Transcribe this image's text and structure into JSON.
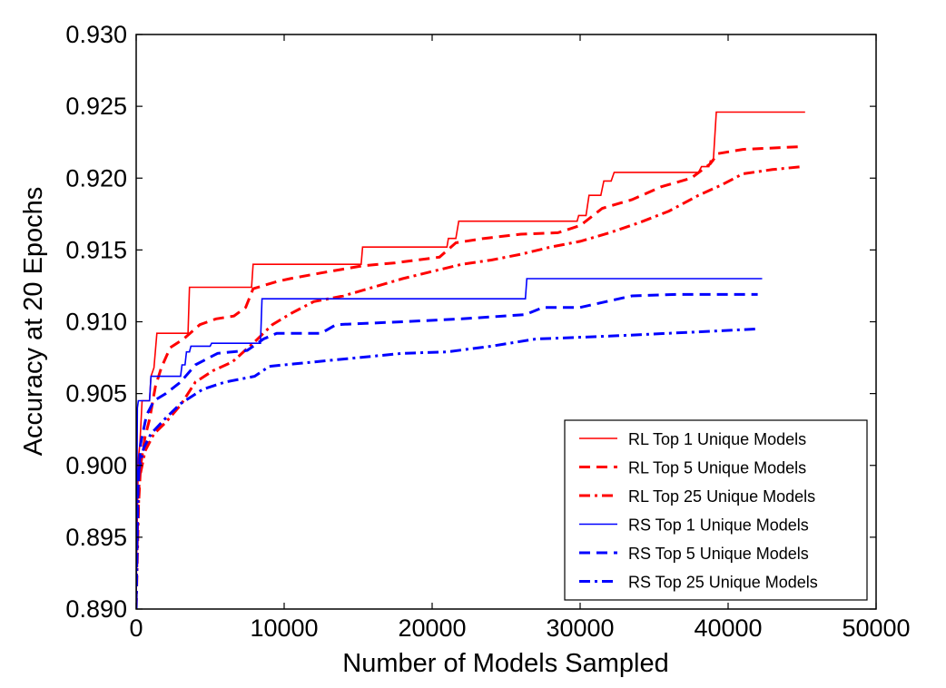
{
  "chart_data": {
    "type": "line",
    "xlabel": "Number of Models Sampled",
    "ylabel": "Accuracy at 20 Epochs",
    "xlim": [
      0,
      50000
    ],
    "ylim": [
      0.89,
      0.93
    ],
    "xticks": [
      0,
      10000,
      20000,
      30000,
      40000,
      50000
    ],
    "xtick_labels": [
      "0",
      "10000",
      "20000",
      "30000",
      "40000",
      "50000"
    ],
    "yticks": [
      0.89,
      0.895,
      0.9,
      0.905,
      0.91,
      0.915,
      0.92,
      0.925,
      0.93
    ],
    "ytick_labels": [
      "0.890",
      "0.895",
      "0.900",
      "0.905",
      "0.910",
      "0.915",
      "0.920",
      "0.925",
      "0.930"
    ],
    "grid": false,
    "legend_position": "lower-right",
    "series": [
      {
        "name": "RL Top 1 Unique Models",
        "color": "#ff0000",
        "style": "solid",
        "width": 1.6,
        "step": true,
        "points": [
          [
            0,
            0.8908
          ],
          [
            60,
            0.8955
          ],
          [
            150,
            0.9005
          ],
          [
            250,
            0.9015
          ],
          [
            400,
            0.9045
          ],
          [
            900,
            0.9045
          ],
          [
            1000,
            0.9062
          ],
          [
            1200,
            0.9068
          ],
          [
            1400,
            0.9092
          ],
          [
            3500,
            0.9092
          ],
          [
            3600,
            0.9124
          ],
          [
            7800,
            0.9124
          ],
          [
            7900,
            0.914
          ],
          [
            15200,
            0.914
          ],
          [
            15300,
            0.9152
          ],
          [
            21000,
            0.9152
          ],
          [
            21100,
            0.9158
          ],
          [
            21600,
            0.9158
          ],
          [
            21800,
            0.917
          ],
          [
            29800,
            0.917
          ],
          [
            29900,
            0.9174
          ],
          [
            30400,
            0.9174
          ],
          [
            30600,
            0.9188
          ],
          [
            31400,
            0.9188
          ],
          [
            31600,
            0.9198
          ],
          [
            32100,
            0.9198
          ],
          [
            32300,
            0.9204
          ],
          [
            38000,
            0.9204
          ],
          [
            38200,
            0.9208
          ],
          [
            38700,
            0.9208
          ],
          [
            38800,
            0.9212
          ],
          [
            39000,
            0.9212
          ],
          [
            39200,
            0.9246
          ],
          [
            45200,
            0.9246
          ]
        ]
      },
      {
        "name": "RL Top 5 Unique Models",
        "color": "#ff0000",
        "style": "dashed",
        "width": 3,
        "step": false,
        "points": [
          [
            0,
            0.8905
          ],
          [
            100,
            0.896
          ],
          [
            300,
            0.9
          ],
          [
            600,
            0.902
          ],
          [
            900,
            0.9032
          ],
          [
            1300,
            0.9055
          ],
          [
            1700,
            0.9068
          ],
          [
            2300,
            0.9082
          ],
          [
            3200,
            0.9088
          ],
          [
            4300,
            0.9098
          ],
          [
            5400,
            0.9102
          ],
          [
            6600,
            0.9104
          ],
          [
            7400,
            0.911
          ],
          [
            7900,
            0.9123
          ],
          [
            9500,
            0.9128
          ],
          [
            10400,
            0.913
          ],
          [
            12500,
            0.9134
          ],
          [
            15300,
            0.9139
          ],
          [
            17500,
            0.9141
          ],
          [
            20500,
            0.9145
          ],
          [
            21600,
            0.9155
          ],
          [
            23500,
            0.9158
          ],
          [
            26000,
            0.9161
          ],
          [
            28500,
            0.9162
          ],
          [
            30000,
            0.9167
          ],
          [
            31500,
            0.9179
          ],
          [
            33500,
            0.9185
          ],
          [
            35500,
            0.9194
          ],
          [
            37500,
            0.92
          ],
          [
            38800,
            0.921
          ],
          [
            39300,
            0.9217
          ],
          [
            41000,
            0.922
          ],
          [
            45100,
            0.9222
          ]
        ]
      },
      {
        "name": "RL Top 25 Unique Models",
        "color": "#ff0000",
        "style": "dashdot",
        "width": 3,
        "step": false,
        "points": [
          [
            0,
            0.89
          ],
          [
            200,
            0.899
          ],
          [
            600,
            0.901
          ],
          [
            1200,
            0.9022
          ],
          [
            2000,
            0.903
          ],
          [
            3000,
            0.9042
          ],
          [
            4000,
            0.9058
          ],
          [
            5200,
            0.9066
          ],
          [
            6500,
            0.9072
          ],
          [
            8000,
            0.9086
          ],
          [
            9200,
            0.9098
          ],
          [
            10500,
            0.9106
          ],
          [
            12000,
            0.9114
          ],
          [
            14000,
            0.9118
          ],
          [
            16000,
            0.9124
          ],
          [
            18000,
            0.913
          ],
          [
            20000,
            0.9135
          ],
          [
            22000,
            0.914
          ],
          [
            24000,
            0.9143
          ],
          [
            26000,
            0.9147
          ],
          [
            28000,
            0.9152
          ],
          [
            30000,
            0.9156
          ],
          [
            32000,
            0.9162
          ],
          [
            34000,
            0.9169
          ],
          [
            36000,
            0.9177
          ],
          [
            38000,
            0.9188
          ],
          [
            39500,
            0.9195
          ],
          [
            41000,
            0.9203
          ],
          [
            43000,
            0.9206
          ],
          [
            45000,
            0.9208
          ]
        ]
      },
      {
        "name": "RS Top 1 Unique Models",
        "color": "#0000ff",
        "style": "solid",
        "width": 1.6,
        "step": true,
        "points": [
          [
            0,
            0.8908
          ],
          [
            40,
            0.8975
          ],
          [
            80,
            0.904
          ],
          [
            150,
            0.9045
          ],
          [
            900,
            0.9045
          ],
          [
            1000,
            0.9062
          ],
          [
            3000,
            0.9062
          ],
          [
            3100,
            0.907
          ],
          [
            3300,
            0.907
          ],
          [
            3400,
            0.9079
          ],
          [
            3600,
            0.9079
          ],
          [
            3700,
            0.9083
          ],
          [
            5000,
            0.9083
          ],
          [
            5100,
            0.9085
          ],
          [
            8400,
            0.9085
          ],
          [
            8500,
            0.9116
          ],
          [
            26300,
            0.9116
          ],
          [
            26400,
            0.913
          ],
          [
            42300,
            0.913
          ]
        ]
      },
      {
        "name": "RS Top 5 Unique Models",
        "color": "#0000ff",
        "style": "dashed",
        "width": 3,
        "step": false,
        "points": [
          [
            0,
            0.8905
          ],
          [
            100,
            0.898
          ],
          [
            300,
            0.9015
          ],
          [
            700,
            0.9035
          ],
          [
            1200,
            0.9045
          ],
          [
            2000,
            0.905
          ],
          [
            3000,
            0.9058
          ],
          [
            4000,
            0.907
          ],
          [
            5500,
            0.9078
          ],
          [
            7500,
            0.908
          ],
          [
            8600,
            0.9088
          ],
          [
            9500,
            0.9092
          ],
          [
            12500,
            0.9092
          ],
          [
            13500,
            0.9098
          ],
          [
            18000,
            0.91
          ],
          [
            22000,
            0.9102
          ],
          [
            26300,
            0.9105
          ],
          [
            27500,
            0.911
          ],
          [
            30000,
            0.911
          ],
          [
            33500,
            0.9118
          ],
          [
            36500,
            0.9119
          ],
          [
            42000,
            0.9119
          ]
        ]
      },
      {
        "name": "RS Top 25 Unique Models",
        "color": "#0000ff",
        "style": "dashdot",
        "width": 3,
        "step": false,
        "points": [
          [
            0,
            0.89
          ],
          [
            150,
            0.8995
          ],
          [
            500,
            0.9012
          ],
          [
            1000,
            0.9022
          ],
          [
            2000,
            0.9033
          ],
          [
            3000,
            0.9043
          ],
          [
            4500,
            0.9053
          ],
          [
            6000,
            0.9058
          ],
          [
            8000,
            0.9062
          ],
          [
            9000,
            0.9069
          ],
          [
            11000,
            0.9071
          ],
          [
            14000,
            0.9074
          ],
          [
            18000,
            0.9078
          ],
          [
            21000,
            0.9079
          ],
          [
            24000,
            0.9083
          ],
          [
            27000,
            0.9088
          ],
          [
            32000,
            0.909
          ],
          [
            36000,
            0.9092
          ],
          [
            40000,
            0.9094
          ],
          [
            42000,
            0.9095
          ]
        ]
      }
    ]
  }
}
